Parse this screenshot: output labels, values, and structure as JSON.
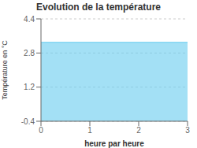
{
  "chart_data": {
    "type": "area",
    "title": "Evolution de la température",
    "xlabel": "heure par heure",
    "ylabel": "Température en °C",
    "x": [
      0,
      3
    ],
    "values": [
      3.3,
      3.3
    ],
    "color": "#66ccee",
    "xlim": [
      0,
      3
    ],
    "ylim": [
      -0.4,
      4.4
    ],
    "xticks": [
      0,
      1,
      2,
      3
    ],
    "yticks": [
      -0.4,
      1.2,
      2.8,
      4.4
    ],
    "grid": true
  }
}
